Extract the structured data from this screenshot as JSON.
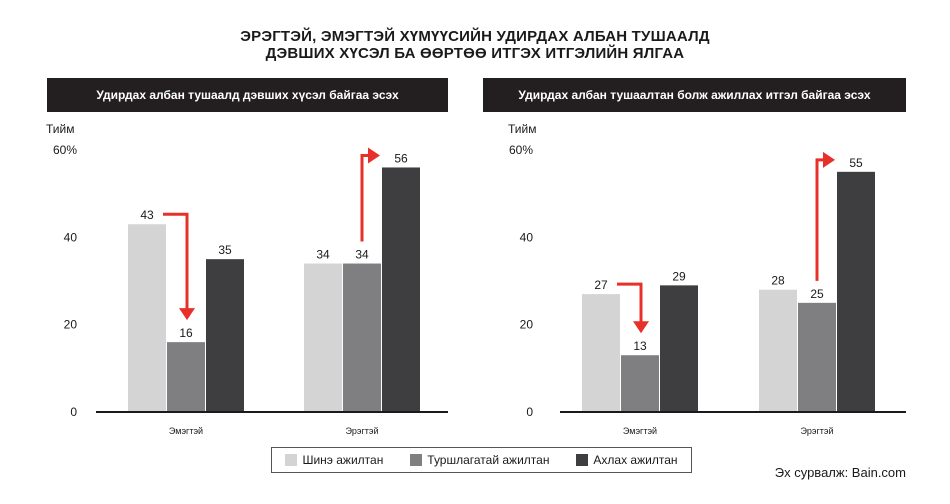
{
  "title": {
    "line1": "ЭРЭГТЭЙ, ЭМЭГТЭЙ ХҮМҮҮСИЙН УДИРДАХ АЛБАН ТУШААЛД",
    "line2": "ДЭВШИХ ХҮСЭЛ БА ӨӨРТӨӨ ИТГЭХ ИТГЭЛИЙН ЯЛГАА"
  },
  "legend": {
    "items": [
      {
        "label": "Шинэ ажилтан",
        "color": "#d4d4d4"
      },
      {
        "label": "Туршлагатай ажилтан",
        "color": "#7f7f81"
      },
      {
        "label": "Ахлах ажилтан",
        "color": "#3e3e40"
      }
    ]
  },
  "source": "Эх сурвалж: Bain.com",
  "chart_data": [
    {
      "type": "bar",
      "title": "Удирдах албан тушаалд дэвших хүсэл байгаа эсэх",
      "ylabel": "Тийм",
      "ylim": [
        0,
        60
      ],
      "yticks": [
        "0",
        "20",
        "40",
        "60%"
      ],
      "categories": [
        "Эмэгтэй",
        "Эрэгтэй"
      ],
      "series": [
        {
          "name": "Шинэ ажилтан",
          "values": [
            43,
            34
          ]
        },
        {
          "name": "Туршлагатай ажилтан",
          "values": [
            16,
            34
          ]
        },
        {
          "name": "Ахлах ажилтан",
          "values": [
            35,
            56
          ]
        }
      ],
      "arrows": [
        {
          "category": "Эмэгтэй",
          "from_series": 0,
          "to_series": 1,
          "direction": "down"
        },
        {
          "category": "Эрэгтэй",
          "from_series": 1,
          "to_series": 2,
          "direction": "up"
        }
      ]
    },
    {
      "type": "bar",
      "title": "Удирдах албан тушаалтан болж ажиллах итгэл байгаа эсэх",
      "ylabel": "Тийм",
      "ylim": [
        0,
        60
      ],
      "yticks": [
        "0",
        "20",
        "40",
        "60%"
      ],
      "categories": [
        "Эмэгтэй",
        "Эрэгтэй"
      ],
      "series": [
        {
          "name": "Шинэ ажилтан",
          "values": [
            27,
            28
          ]
        },
        {
          "name": "Туршлагатай ажилтан",
          "values": [
            13,
            25
          ]
        },
        {
          "name": "Ахлах ажилтан",
          "values": [
            29,
            55
          ]
        }
      ],
      "arrows": [
        {
          "category": "Эмэгтэй",
          "from_series": 0,
          "to_series": 1,
          "direction": "down"
        },
        {
          "category": "Эрэгтэй",
          "from_series": 1,
          "to_series": 2,
          "direction": "up"
        }
      ]
    }
  ]
}
